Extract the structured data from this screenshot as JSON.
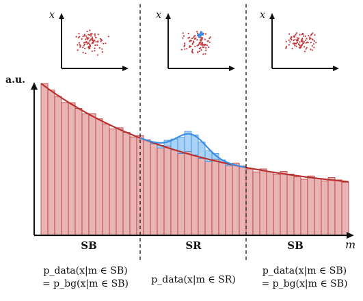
{
  "labels": {
    "y_axis": "a.u.",
    "x_axis": "m",
    "inset_axis": "x"
  },
  "regions": [
    {
      "name": "SB",
      "formula": [
        "p_data(x|m ∈ SB)",
        "= p_bg(x|m ∈ SB)"
      ]
    },
    {
      "name": "SR",
      "formula": [
        "p_data(x|m ∈ SR)"
      ]
    },
    {
      "name": "SB",
      "formula": [
        "p_data(x|m ∈ SB)",
        "= p_bg(x|m ∈ SB)"
      ]
    }
  ],
  "colors": {
    "background_fill": "#e8b4b4",
    "background_line": "#b83232",
    "signal_fill": "#a9d2f5",
    "signal_line": "#3a8ee6",
    "scatter_bg": "#c0393b",
    "scatter_sig": "#3a8ee6",
    "axis": "#111111"
  }
}
